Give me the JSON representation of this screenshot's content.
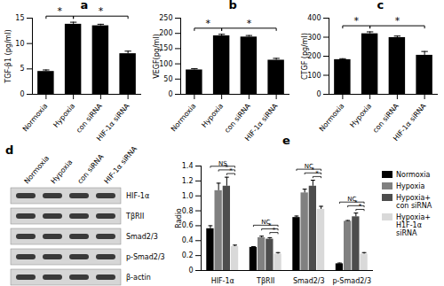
{
  "chart_data": [
    {
      "type": "bar",
      "panel": "a",
      "ylabel": "TGF-β1 (pg/ml)",
      "categories": [
        "Normoxia",
        "Hypoxia",
        "con siRNA",
        "HIF-1α siRNA"
      ],
      "values": [
        4.5,
        13.8,
        13.5,
        8.0
      ],
      "errors": [
        0.3,
        0.4,
        0.3,
        0.5
      ],
      "color": "#000000",
      "ylim": [
        0,
        15
      ],
      "yticks": [
        0,
        5,
        10,
        15
      ],
      "significance": [
        {
          "from": "Normoxia",
          "to": "Hypoxia",
          "label": "*"
        },
        {
          "from": "Hypoxia",
          "to": "HIF-1α siRNA",
          "label": "*"
        }
      ]
    },
    {
      "type": "bar",
      "panel": "b",
      "ylabel": "VEGF(pg/ml)",
      "categories": [
        "Normoxia",
        "Hypoxia",
        "con siRNA",
        "HIF-1α siRNA"
      ],
      "values": [
        80,
        192,
        188,
        112
      ],
      "errors": [
        4,
        5,
        5,
        6
      ],
      "color": "#000000",
      "ylim": [
        0,
        250
      ],
      "yticks": [
        0,
        50,
        100,
        150,
        200,
        250
      ],
      "significance": [
        {
          "from": "Normoxia",
          "to": "Hypoxia",
          "label": "*"
        },
        {
          "from": "Hypoxia",
          "to": "HIF-1α siRNA",
          "label": "*"
        }
      ]
    },
    {
      "type": "bar",
      "panel": "c",
      "ylabel": "CTGF (pg/ml)",
      "categories": [
        "Normoxia",
        "Hypoxia",
        "con siRNA",
        "HIF-1α siRNA"
      ],
      "values": [
        182,
        318,
        298,
        205
      ],
      "errors": [
        5,
        10,
        8,
        20
      ],
      "color": "#000000",
      "ylim": [
        0,
        400
      ],
      "yticks": [
        0,
        100,
        200,
        300,
        400
      ],
      "significance": [
        {
          "from": "Normoxia",
          "to": "Hypoxia",
          "label": "*"
        },
        {
          "from": "Hypoxia",
          "to": "HIF-1α siRNA",
          "label": "*"
        }
      ]
    },
    {
      "type": "grouped_bar",
      "panel": "e",
      "ylabel": "Radio",
      "categories": [
        "HIF-1α",
        "TβRII",
        "Smad2/3",
        "p-Smad2/3"
      ],
      "series": [
        {
          "name": "Normoxia",
          "color": "#000000",
          "values": [
            0.56,
            0.31,
            0.71,
            0.09
          ],
          "errors": [
            0.04,
            0.01,
            0.02,
            0.01
          ]
        },
        {
          "name": "Hypoxia",
          "color": "#808080",
          "values": [
            1.07,
            0.44,
            1.04,
            0.66
          ],
          "errors": [
            0.1,
            0.02,
            0.05,
            0.01
          ]
        },
        {
          "name": "Hypoxia+ con siRNA",
          "color": "#4d4d4d",
          "values": [
            1.13,
            0.42,
            1.13,
            0.72
          ],
          "errors": [
            0.12,
            0.02,
            0.08,
            0.05
          ]
        },
        {
          "name": "Hypoxia+ H1F-1α siRNA",
          "color": "#d9d9d9",
          "values": [
            0.32,
            0.22,
            0.82,
            0.22
          ],
          "errors": [
            0.02,
            0.02,
            0.04,
            0.02
          ]
        }
      ],
      "ylim": [
        0,
        1.4
      ],
      "yticks": [
        0,
        0.2,
        0.4,
        0.6,
        0.8,
        {
          "value": 1,
          "label": "1.0"
        },
        1.2,
        1.4
      ],
      "legend": "right",
      "significance": [
        {
          "category": "HIF-1α",
          "from": "Hypoxia+ con siRNA",
          "to": "Hypoxia+ H1F-1α siRNA",
          "label": "*"
        },
        {
          "category": "HIF-1α",
          "from": "Hypoxia",
          "to": "Hypoxia+ H1F-1α siRNA",
          "label": "*"
        },
        {
          "category": "HIF-1α",
          "from": "Normoxia",
          "to": "Hypoxia+ H1F-1α siRNA",
          "label": "NS"
        },
        {
          "category": "TβRII",
          "from": "Hypoxia+ con siRNA",
          "to": "Hypoxia+ H1F-1α siRNA",
          "label": "*"
        },
        {
          "category": "TβRII",
          "from": "Hypoxia",
          "to": "Hypoxia+ H1F-1α siRNA",
          "label": "*"
        },
        {
          "category": "TβRII",
          "from": "Normoxia",
          "to": "Hypoxia+ H1F-1α siRNA",
          "label": "NC"
        },
        {
          "category": "Smad2/3",
          "from": "Hypoxia+ con siRNA",
          "to": "Hypoxia+ H1F-1α siRNA",
          "label": "*"
        },
        {
          "category": "Smad2/3",
          "from": "Hypoxia",
          "to": "Hypoxia+ H1F-1α siRNA",
          "label": "*"
        },
        {
          "category": "Smad2/3",
          "from": "Normoxia",
          "to": "Hypoxia+ H1F-1α siRNA",
          "label": "NC"
        },
        {
          "category": "p-Smad2/3",
          "from": "Hypoxia+ con siRNA",
          "to": "Hypoxia+ H1F-1α siRNA",
          "label": "*"
        },
        {
          "category": "p-Smad2/3",
          "from": "Hypoxia",
          "to": "Hypoxia+ H1F-1α siRNA",
          "label": "*"
        },
        {
          "category": "p-Smad2/3",
          "from": "Normoxia",
          "to": "Hypoxia+ H1F-1α siRNA",
          "label": "NC"
        }
      ]
    }
  ],
  "blot": {
    "panel": "d",
    "lanes": [
      "Normoxia",
      "Hypoxia",
      "con siRNA",
      "HIF-1α siRNA"
    ],
    "proteins": [
      "HIF-1α",
      "TβRII",
      "Smad2/3",
      "p-Smad2/3",
      "β-actin"
    ]
  }
}
